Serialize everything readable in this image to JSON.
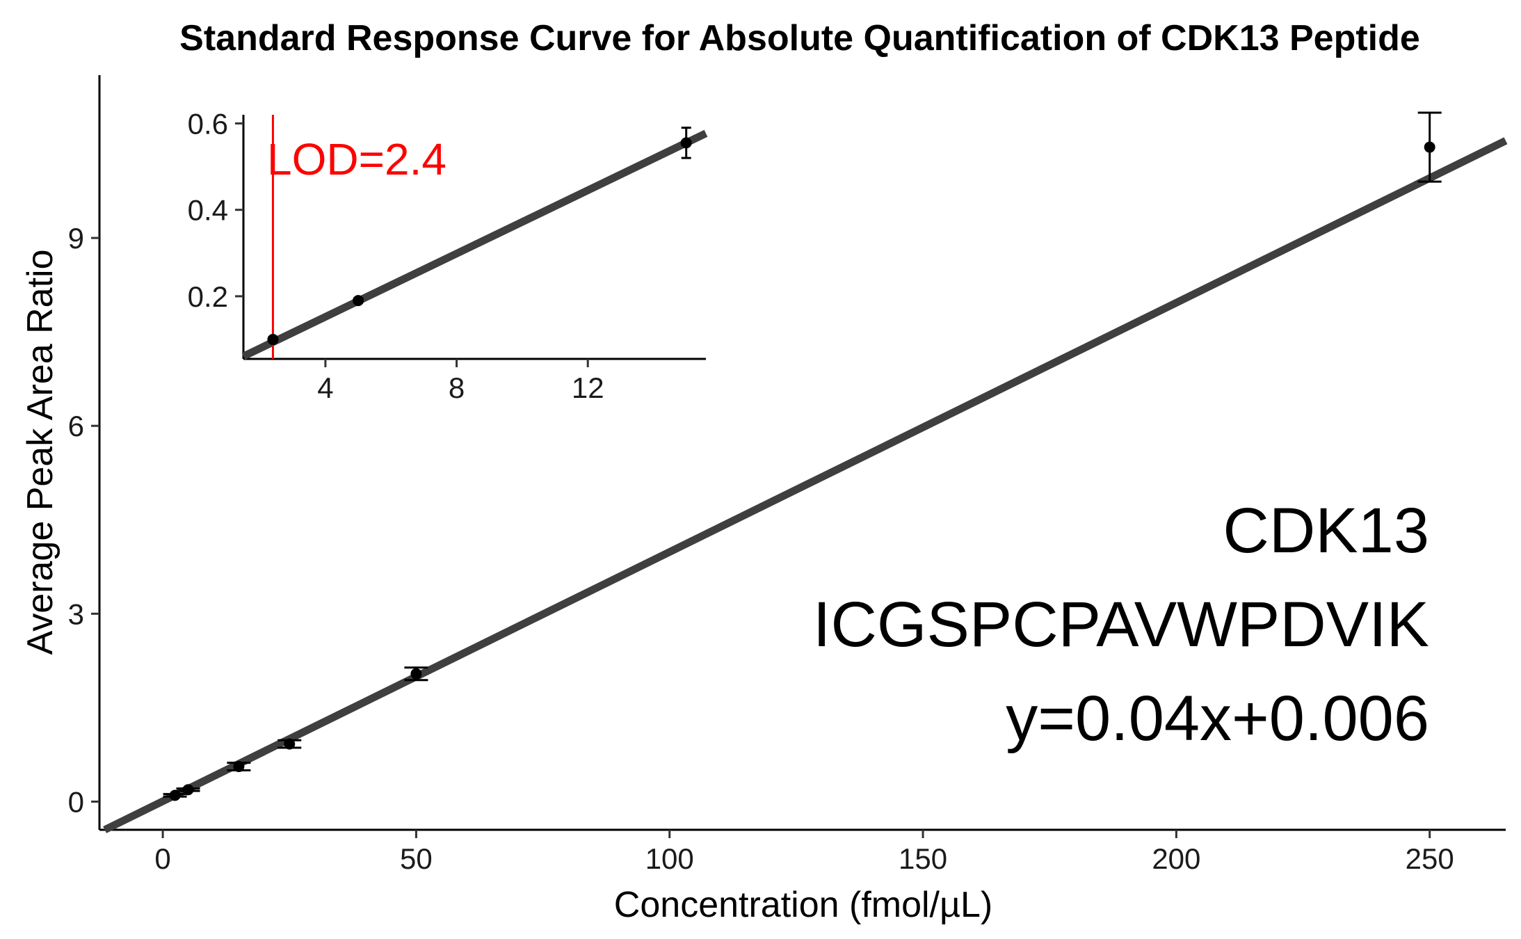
{
  "chart_data": [
    {
      "type": "scatter",
      "title": "Standard Response Curve for Absolute Quantification of CDK13 Peptide",
      "xlabel": "Concentration (fmol/µL)",
      "ylabel": "Average Peak Area Ratio",
      "xlim": [
        -12.5,
        265
      ],
      "ylim": [
        -0.45,
        11.6
      ],
      "xticks": [
        0,
        50,
        100,
        150,
        200,
        250
      ],
      "yticks": [
        0,
        3,
        6,
        9
      ],
      "grid": false,
      "points": [
        {
          "x": 2.4,
          "y": 0.1,
          "err": 0.02
        },
        {
          "x": 5,
          "y": 0.19,
          "err": 0.02
        },
        {
          "x": 15,
          "y": 0.56,
          "err": 0.06
        },
        {
          "x": 25,
          "y": 0.92,
          "err": 0.06
        },
        {
          "x": 50,
          "y": 2.04,
          "err": 0.1
        },
        {
          "x": 250,
          "y": 10.45,
          "err": 0.55
        }
      ],
      "fit_line": {
        "slope": 0.0398,
        "intercept": 0.006
      },
      "annotations": [
        "CDK13",
        "ICGSPCPAVWPDVIK",
        "y=0.04x+0.006"
      ],
      "line_color": "#3f3f3f"
    },
    {
      "type": "scatter",
      "xlim": [
        1.5,
        15.6
      ],
      "ylim": [
        0.055,
        0.62
      ],
      "xticks": [
        4,
        8,
        12
      ],
      "yticks": [
        0.2,
        0.4,
        0.6
      ],
      "grid": false,
      "points": [
        {
          "x": 2.4,
          "y": 0.1,
          "err": 0.005
        },
        {
          "x": 5,
          "y": 0.19,
          "err": 0.005
        },
        {
          "x": 15,
          "y": 0.555,
          "err": 0.035
        }
      ],
      "fit_line": {
        "slope": 0.0366,
        "intercept": 0.006
      },
      "lod": {
        "x": 2.4,
        "label": "LOD=2.4",
        "color": "#ff0000"
      }
    }
  ]
}
